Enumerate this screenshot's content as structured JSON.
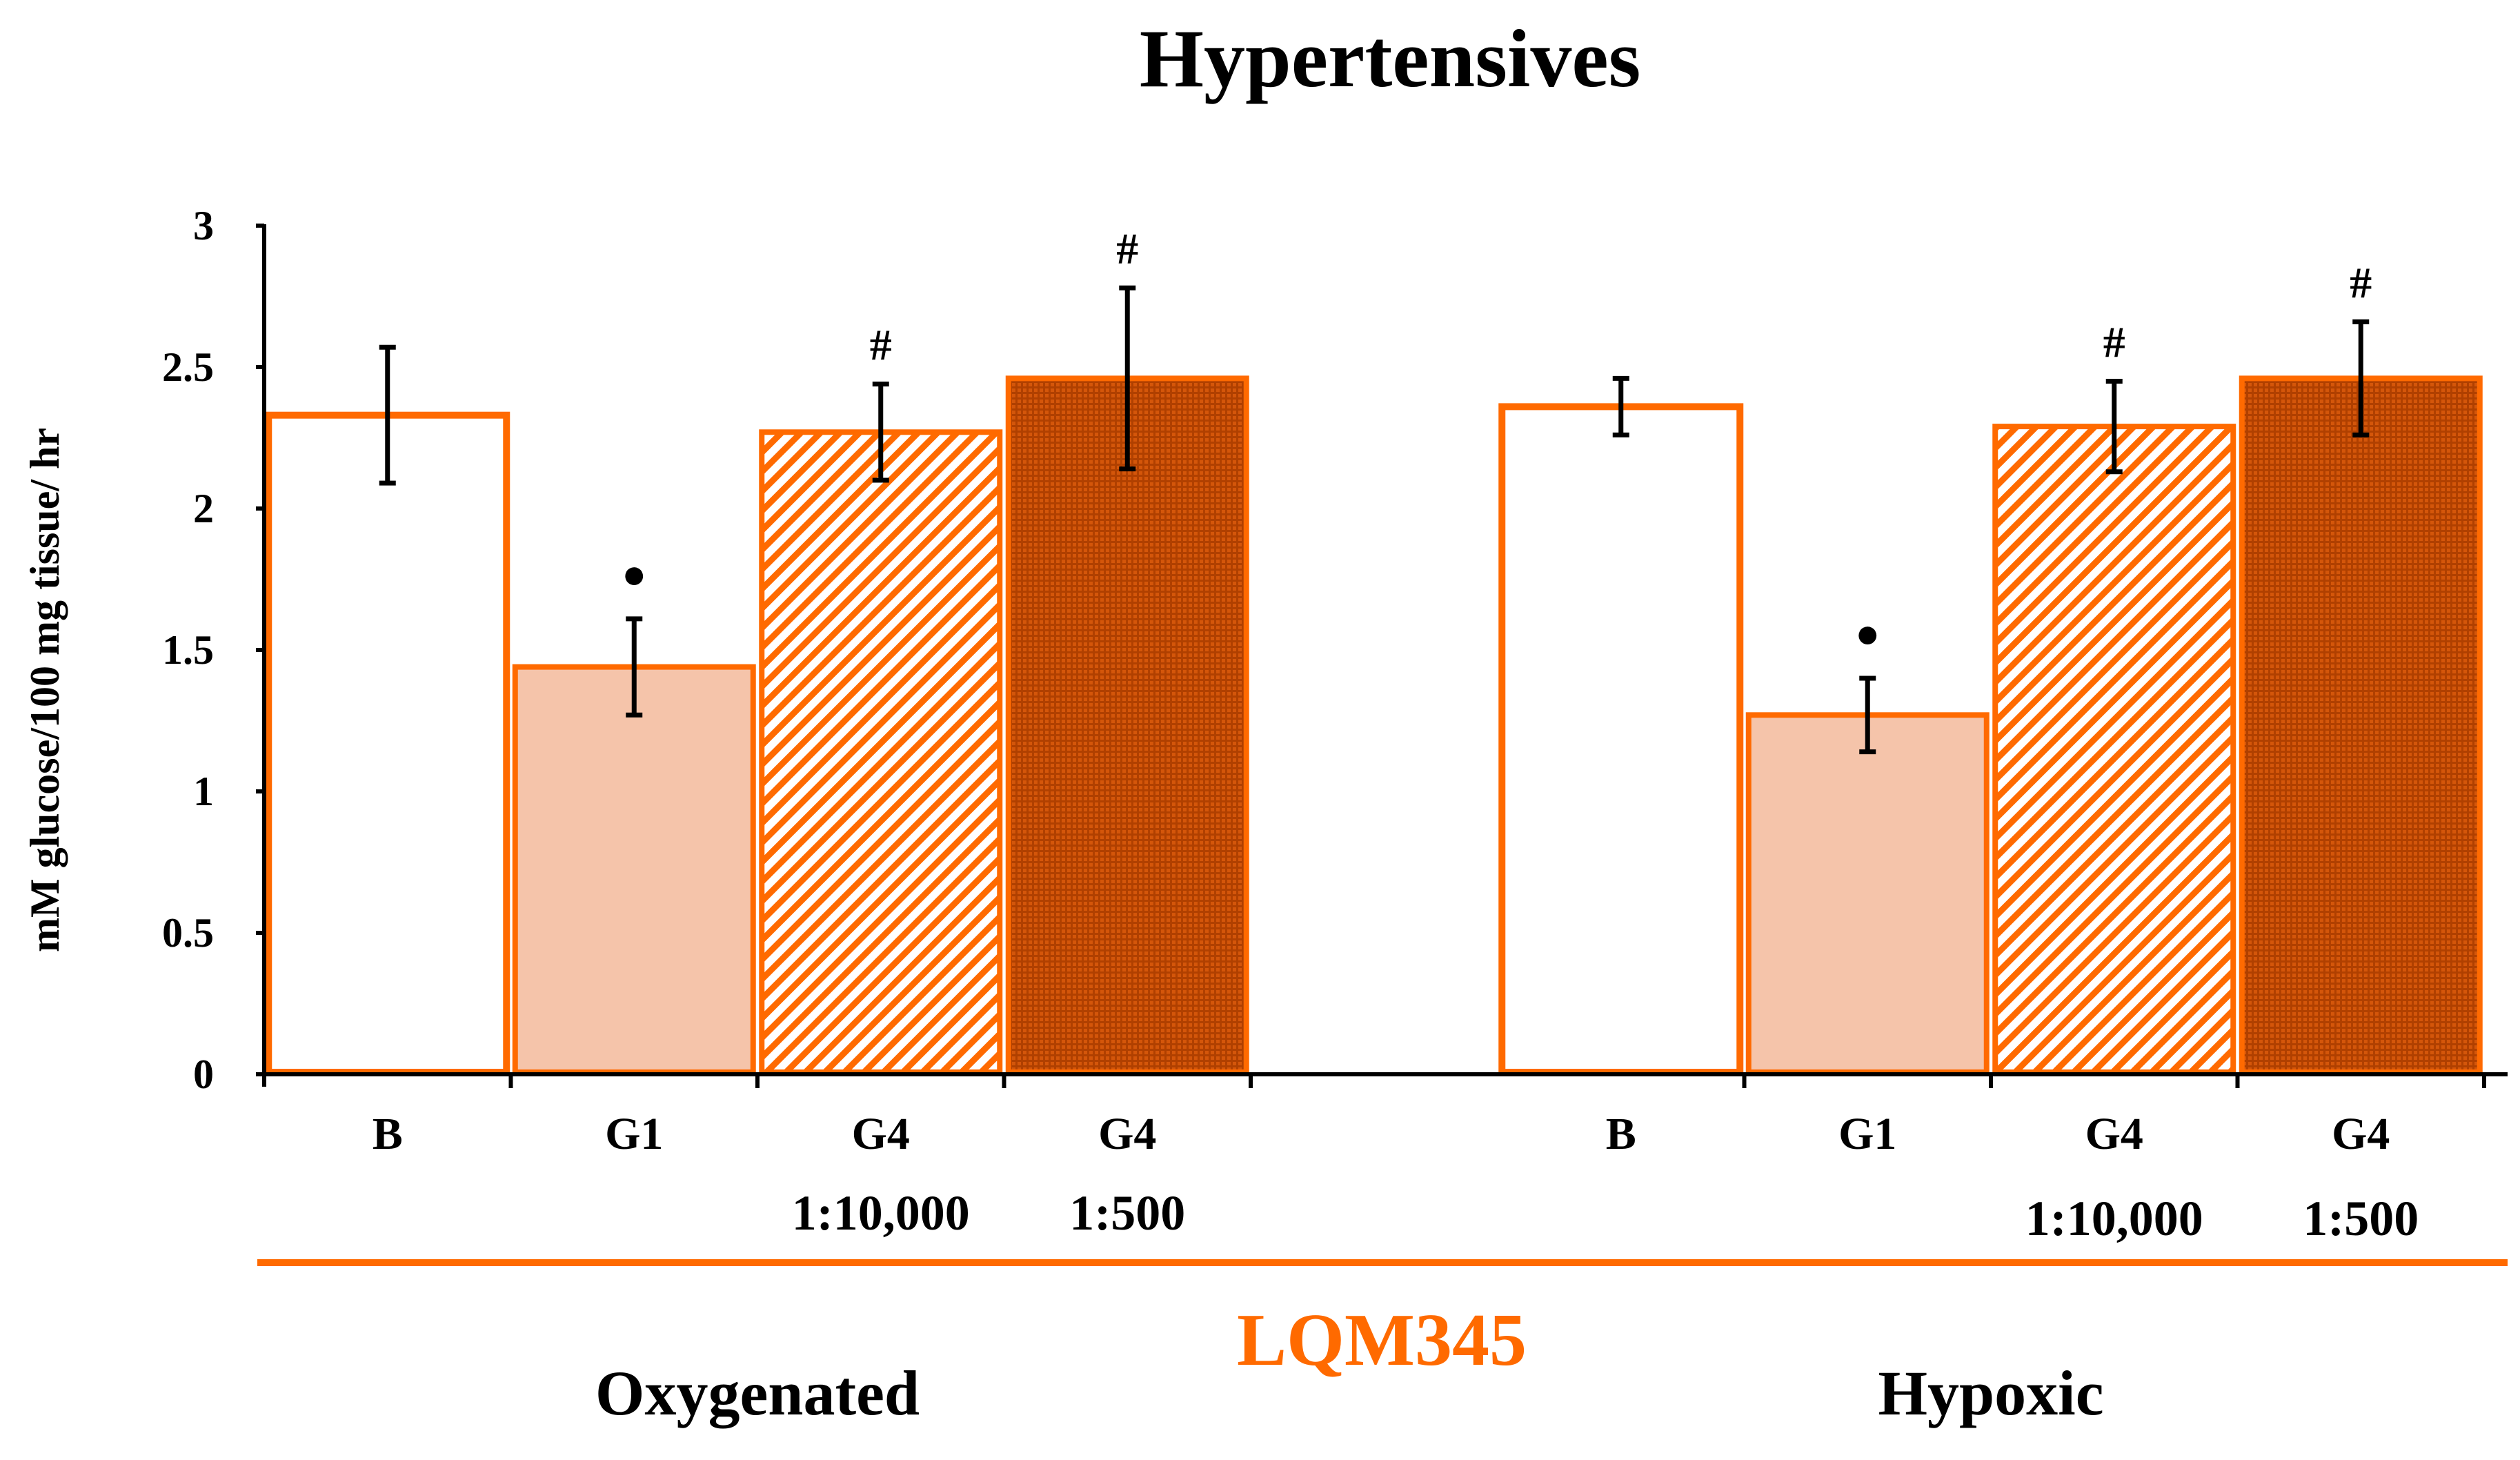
{
  "chart_data": {
    "type": "bar",
    "title": "Hypertensives",
    "ylabel": "mM glucose/100 mg tissue/ hr",
    "xlabel": "",
    "ylim": [
      0,
      3
    ],
    "yticks": [
      0,
      0.5,
      1,
      1.5,
      2,
      2.5,
      3
    ],
    "ytick_labels": [
      "0",
      "0.5",
      "1",
      "1.5",
      "2",
      "2.5",
      "3"
    ],
    "bracket_label": "LQM345",
    "groups": [
      {
        "name": "Oxygenated",
        "bars": [
          {
            "label": "B",
            "sublabel": "",
            "value": 2.33,
            "error": 0.24,
            "marker": "",
            "style": "open"
          },
          {
            "label": "G1",
            "sublabel": "",
            "value": 1.44,
            "error": 0.17,
            "marker": "●",
            "style": "light"
          },
          {
            "label": "G4",
            "sublabel": "1:10,000",
            "value": 2.27,
            "error": 0.17,
            "marker": "#",
            "style": "hatch"
          },
          {
            "label": "G4",
            "sublabel": "1:500",
            "value": 2.46,
            "error": 0.32,
            "marker": "#",
            "style": "dense"
          }
        ]
      },
      {
        "name": "Hypoxic",
        "bars": [
          {
            "label": "B",
            "sublabel": "",
            "value": 2.36,
            "error": 0.1,
            "marker": "",
            "style": "open"
          },
          {
            "label": "G1",
            "sublabel": "",
            "value": 1.27,
            "error": 0.13,
            "marker": "●",
            "style": "light"
          },
          {
            "label": "G4",
            "sublabel": "1:10,000",
            "value": 2.29,
            "error": 0.16,
            "marker": "#",
            "style": "hatch"
          },
          {
            "label": "G4",
            "sublabel": "1:500",
            "value": 2.46,
            "error": 0.2,
            "marker": "#",
            "style": "dense"
          }
        ]
      }
    ],
    "colors": {
      "orange": "#FF6A00",
      "light_fill": "#F5C4AA",
      "dense_fill": "#C8500A",
      "axis": "#000000"
    }
  }
}
